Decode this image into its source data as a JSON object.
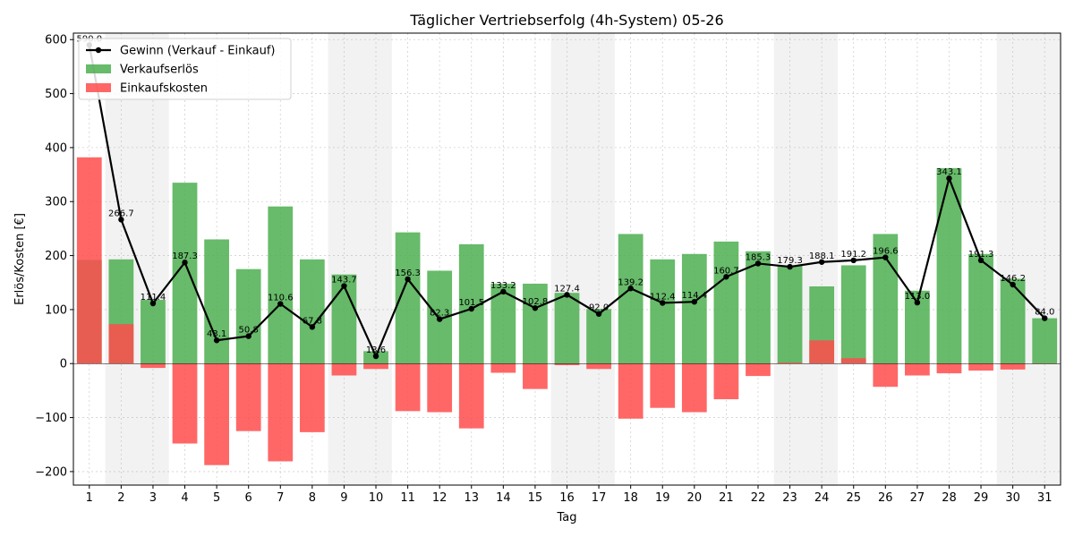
{
  "chart_data": {
    "type": "bar",
    "title": "Täglicher Vertriebserfolg (4h-System) 05-26",
    "xlabel": "Tag",
    "ylabel": "Erlös/Kosten [€]",
    "ylim": [
      -225,
      612
    ],
    "yticks": [
      -200,
      -100,
      0,
      100,
      200,
      300,
      400,
      500,
      600
    ],
    "grid": true,
    "legend_position": "top-left",
    "categories": [
      "1",
      "2",
      "3",
      "4",
      "5",
      "6",
      "7",
      "8",
      "9",
      "10",
      "11",
      "12",
      "13",
      "14",
      "15",
      "16",
      "17",
      "18",
      "19",
      "20",
      "21",
      "22",
      "23",
      "24",
      "25",
      "26",
      "27",
      "28",
      "29",
      "30",
      "31"
    ],
    "weekend_days": [
      2,
      3,
      9,
      10,
      16,
      17,
      23,
      24,
      30,
      31
    ],
    "series": [
      {
        "name": "Verkaufserlös",
        "type": "bar",
        "color": "#4caf50",
        "values": [
          192,
          193,
          118,
          335,
          230,
          175,
          291,
          193,
          165,
          23,
          243,
          172,
          221,
          148,
          148,
          131,
          101,
          240,
          193,
          203,
          226,
          208,
          182,
          143,
          182,
          240,
          135,
          362,
          203,
          157,
          84
        ]
      },
      {
        "name": "Einkaufskosten",
        "type": "bar",
        "color": "#ff4c4c",
        "values": [
          382,
          73,
          -8,
          -148,
          -188,
          -125,
          -181,
          -127,
          -22,
          -10,
          -88,
          -90,
          -120,
          -17,
          -47,
          -3,
          -10,
          -102,
          -82,
          -90,
          -66,
          -23,
          2,
          43,
          10,
          -43,
          -22,
          -18,
          -13,
          -11,
          0
        ]
      },
      {
        "name": "Gewinn (Verkauf - Einkauf)",
        "type": "line",
        "color": "#000000",
        "values": [
          590,
          266.7,
          111.4,
          187.3,
          43.1,
          50.8,
          110.6,
          67.8,
          143.7,
          13.6,
          156.3,
          82.3,
          101.5,
          133.2,
          102.8,
          127.4,
          92.0,
          139.2,
          112.4,
          114.4,
          160.7,
          185.3,
          179.3,
          188.1,
          191.2,
          196.6,
          113.0,
          343.1,
          191.3,
          146.2,
          84.0
        ],
        "labels": [
          "590.0",
          "266.7",
          "111.4",
          "187.3",
          "43.1",
          "50.8",
          "110.6",
          "67.8",
          "143.7",
          "13.6",
          "156.3",
          "82.3",
          "101.5",
          "133.2",
          "102.8",
          "127.4",
          "92.0",
          "139.2",
          "112.4",
          "114.4",
          "160.7",
          "185.3",
          "179.3",
          "188.1",
          "191.2",
          "196.6",
          "113.0",
          "343.1",
          "191.3",
          "146.2",
          "84.0"
        ]
      }
    ]
  }
}
